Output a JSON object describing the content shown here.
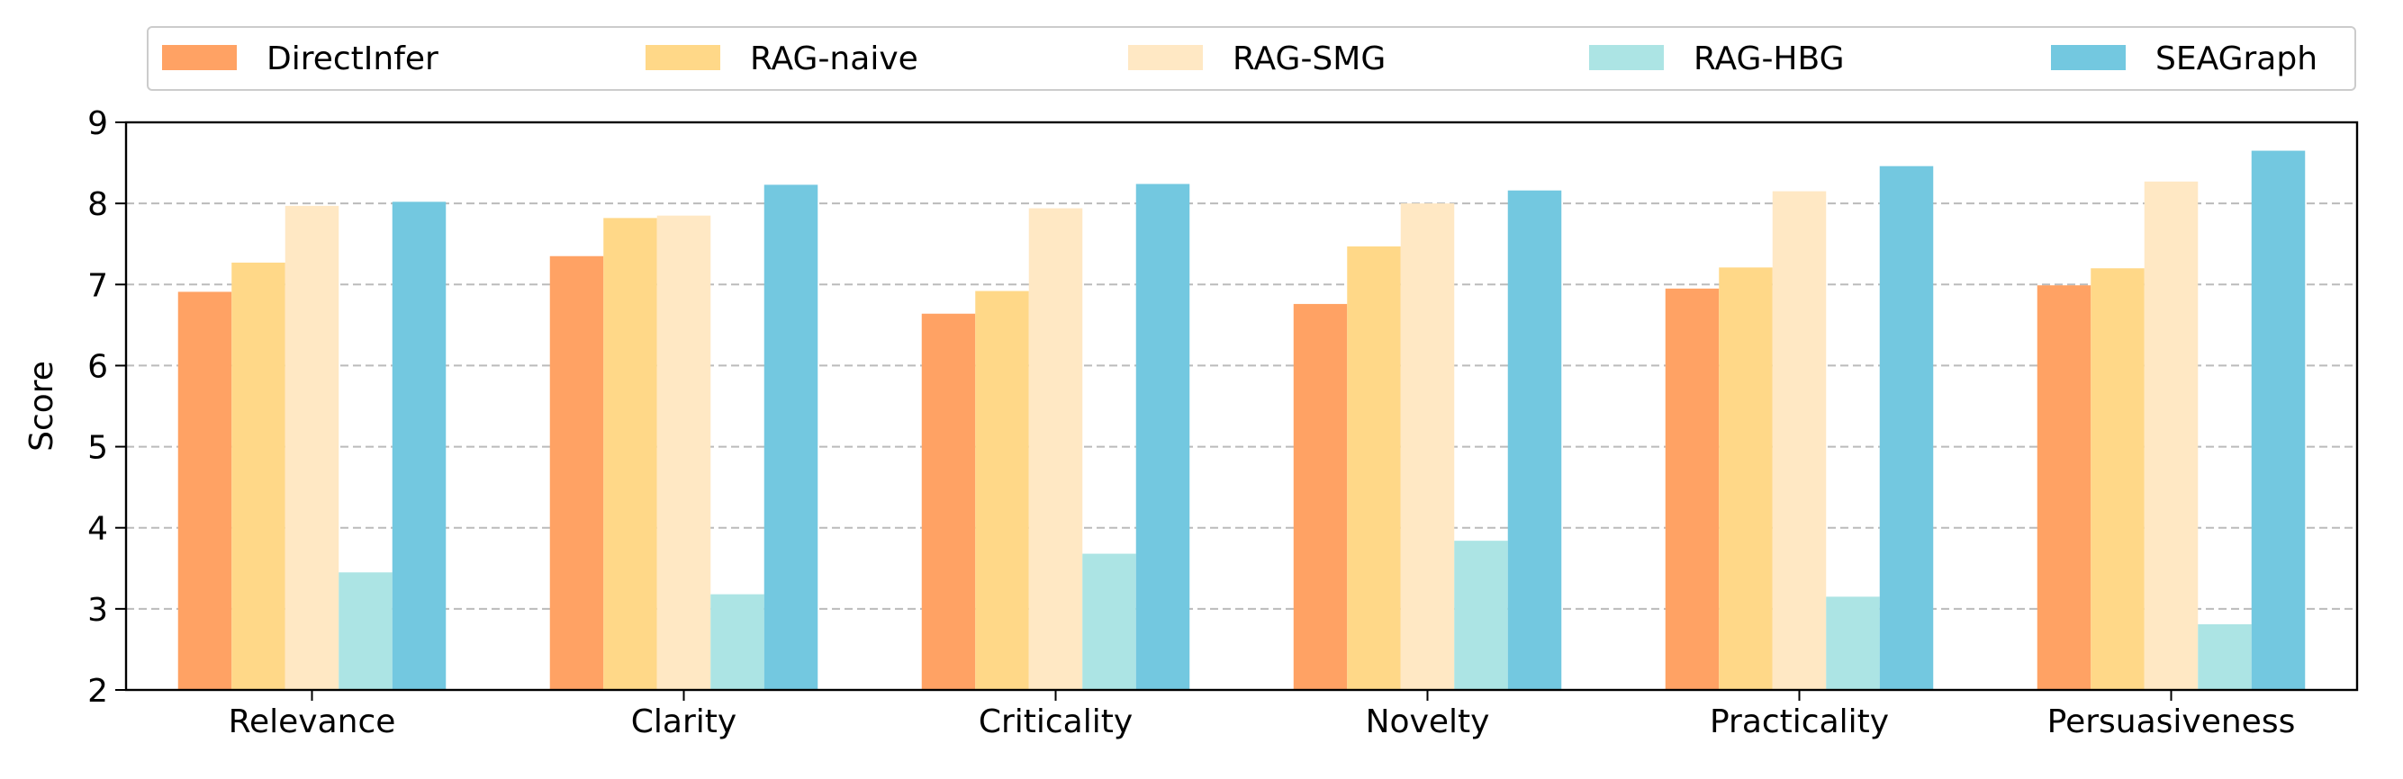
{
  "chart_data": {
    "type": "bar",
    "title": "",
    "xlabel": "",
    "ylabel": "Score",
    "ylim": [
      2,
      9
    ],
    "yticks": [
      "2",
      "3",
      "4",
      "5",
      "6",
      "7",
      "8",
      "9"
    ],
    "grid": "horizontal dashed",
    "legend_position": "top",
    "categories": [
      "Relevance",
      "Clarity",
      "Criticality",
      "Novelty",
      "Practicality",
      "Persuasiveness"
    ],
    "series": [
      {
        "name": "DirectInfer",
        "color": "#FFA264",
        "values": [
          6.91,
          7.35,
          6.64,
          6.76,
          6.95,
          6.99
        ]
      },
      {
        "name": "RAG-naive",
        "color": "#FFD888",
        "values": [
          7.27,
          7.82,
          6.92,
          7.47,
          7.21,
          7.2
        ]
      },
      {
        "name": "RAG-SMG",
        "color": "#FFE8C4",
        "values": [
          7.97,
          7.85,
          7.94,
          8.0,
          8.15,
          8.27
        ]
      },
      {
        "name": "RAG-HBG",
        "color": "#ACE4E4",
        "values": [
          3.45,
          3.18,
          3.68,
          3.84,
          3.15,
          2.81
        ]
      },
      {
        "name": "SEAGraph",
        "color": "#73C8E0",
        "values": [
          8.02,
          8.23,
          8.24,
          8.16,
          8.46,
          8.65
        ]
      }
    ]
  }
}
